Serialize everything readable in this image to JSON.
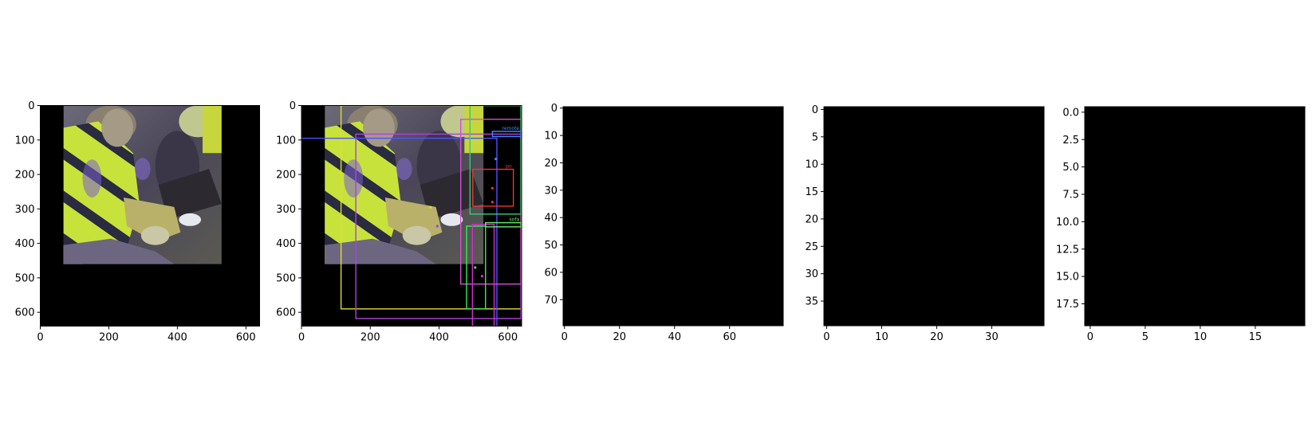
{
  "figure": {
    "background": "#ffffff",
    "frame_color": "#000000"
  },
  "chart_data": [
    {
      "type": "image",
      "title": "",
      "xlabel": "",
      "ylabel": "",
      "xlim": [
        0,
        640
      ],
      "ylim": [
        640,
        0
      ],
      "x_ticks": [
        0,
        200,
        400,
        600
      ],
      "x_tick_labels": [
        "0",
        "200",
        "400",
        "600"
      ],
      "y_ticks": [
        0,
        100,
        200,
        300,
        400,
        500,
        600
      ],
      "y_tick_labels": [
        "0",
        "100",
        "200",
        "300",
        "400",
        "500",
        "600"
      ],
      "image": {
        "content": "video frame: two people seated, person in yellow-green striped jacket holding a white game controller",
        "extent": [
          68,
          529,
          460,
          0
        ]
      },
      "boxes": []
    },
    {
      "type": "image",
      "title": "",
      "xlabel": "",
      "ylabel": "",
      "xlim": [
        0,
        640
      ],
      "ylim": [
        640,
        0
      ],
      "x_ticks": [
        0,
        200,
        400,
        600
      ],
      "x_tick_labels": [
        "0",
        "200",
        "400",
        "600"
      ],
      "y_ticks": [
        0,
        100,
        200,
        300,
        400,
        500,
        600
      ],
      "y_tick_labels": [
        "0",
        "100",
        "200",
        "300",
        "400",
        "500",
        "600"
      ],
      "image": {
        "content": "same video frame with detection overlays",
        "extent": [
          68,
          529,
          460,
          0
        ]
      },
      "boxes": [
        {
          "x0": 115,
          "y0": 0,
          "x1": 638,
          "y1": 590,
          "color": "#dddd33",
          "label": ""
        },
        {
          "x0": 158,
          "y0": 83,
          "x1": 638,
          "y1": 618,
          "color": "#b040e0",
          "label": ""
        },
        {
          "x0": 0,
          "y0": 95,
          "x1": 568,
          "y1": 640,
          "color": "#5050ff",
          "label": ""
        },
        {
          "x0": 463,
          "y0": 40,
          "x1": 638,
          "y1": 518,
          "color": "#d050d0",
          "label": ""
        },
        {
          "x0": 490,
          "y0": 0,
          "x1": 638,
          "y1": 315,
          "color": "#33cc77",
          "label": ""
        },
        {
          "x0": 498,
          "y0": 185,
          "x1": 616,
          "y1": 292,
          "color": "#ee3333",
          "label": "po"
        },
        {
          "x0": 480,
          "y0": 350,
          "x1": 535,
          "y1": 590,
          "color": "#33ee55",
          "label": ""
        },
        {
          "x0": 497,
          "y0": 345,
          "x1": 560,
          "y1": 640,
          "color": "#cc33cc",
          "label": ""
        },
        {
          "x0": 555,
          "y0": 75,
          "x1": 638,
          "y1": 90,
          "color": "#4488ff",
          "label": "remote"
        },
        {
          "x0": 535,
          "y0": 340,
          "x1": 638,
          "y1": 352,
          "color": "#66ee66",
          "label": "sofa"
        }
      ],
      "points": [
        {
          "x": 375,
          "y": 295,
          "color": "#dddd33"
        },
        {
          "x": 395,
          "y": 350,
          "color": "#8844ff"
        },
        {
          "x": 565,
          "y": 155,
          "color": "#4488ff"
        },
        {
          "x": 555,
          "y": 280,
          "color": "#ee3333"
        },
        {
          "x": 555,
          "y": 240,
          "color": "#ee3333"
        },
        {
          "x": 505,
          "y": 470,
          "color": "#33ee55"
        },
        {
          "x": 525,
          "y": 495,
          "color": "#cc33cc"
        }
      ]
    },
    {
      "type": "image",
      "title": "",
      "xlabel": "",
      "ylabel": "",
      "xlim": [
        -0.5,
        79.5
      ],
      "ylim": [
        79.5,
        -0.5
      ],
      "x_ticks": [
        0,
        20,
        40,
        60
      ],
      "x_tick_labels": [
        "0",
        "20",
        "40",
        "60"
      ],
      "y_ticks": [
        0,
        10,
        20,
        30,
        40,
        50,
        60,
        70
      ],
      "y_tick_labels": [
        "0",
        "10",
        "20",
        "30",
        "40",
        "50",
        "60",
        "70"
      ],
      "image": {
        "content": "all black 80x80 feature map"
      },
      "boxes": []
    },
    {
      "type": "image",
      "title": "",
      "xlabel": "",
      "ylabel": "",
      "xlim": [
        -0.5,
        39.5
      ],
      "ylim": [
        39.5,
        -0.5
      ],
      "x_ticks": [
        0,
        10,
        20,
        30
      ],
      "x_tick_labels": [
        "0",
        "10",
        "20",
        "30"
      ],
      "y_ticks": [
        0,
        5,
        10,
        15,
        20,
        25,
        30,
        35
      ],
      "y_tick_labels": [
        "0",
        "5",
        "10",
        "15",
        "20",
        "25",
        "30",
        "35"
      ],
      "image": {
        "content": "all black 40x40 feature map"
      },
      "boxes": []
    },
    {
      "type": "image",
      "title": "",
      "xlabel": "",
      "ylabel": "",
      "xlim": [
        -0.5,
        19.5
      ],
      "ylim": [
        19.5,
        -0.5
      ],
      "x_ticks": [
        0,
        5,
        10,
        15
      ],
      "x_tick_labels": [
        "0",
        "5",
        "10",
        "15"
      ],
      "y_ticks": [
        0,
        2.5,
        5,
        7.5,
        10,
        12.5,
        15,
        17.5
      ],
      "y_tick_labels": [
        "0.0",
        "2.5",
        "5.0",
        "7.5",
        "10.0",
        "12.5",
        "15.0",
        "17.5"
      ],
      "image": {
        "content": "all black 20x20 feature map"
      },
      "boxes": []
    }
  ]
}
